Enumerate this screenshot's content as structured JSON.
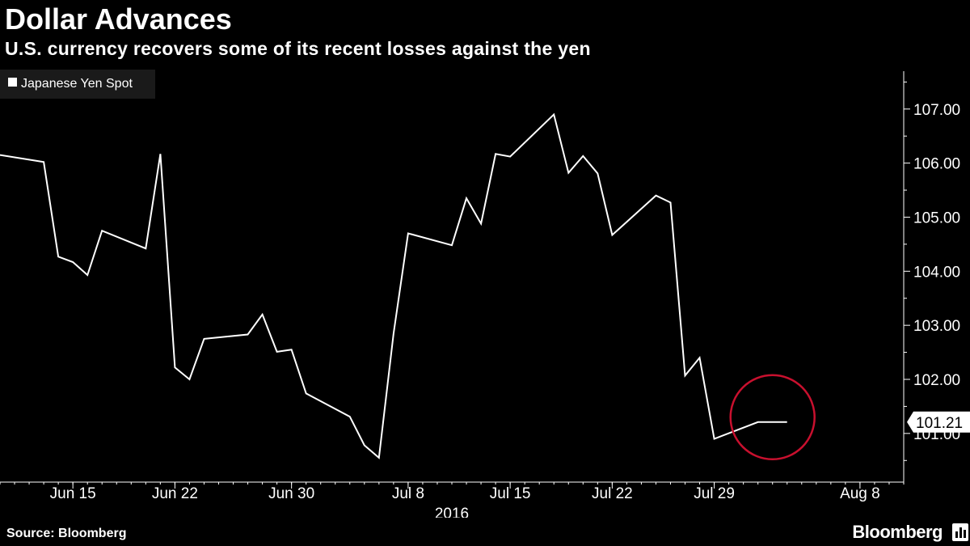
{
  "header": {
    "title": "Dollar Advances",
    "subtitle": "U.S. currency recovers some of its recent losses against the yen"
  },
  "footer": {
    "source": "Source: Bloomberg",
    "brand": "Bloomberg"
  },
  "colors": {
    "background": "#000000",
    "line": "#ffffff",
    "highlight_circle": "#c8102e",
    "legend_box": "#1a1a1a"
  },
  "chart_data": {
    "type": "line",
    "title": "Dollar Advances",
    "subtitle": "U.S. currency recovers some of its recent losses against the yen",
    "xlabel": "2016",
    "ylabel": "",
    "legend": {
      "position": "top-left",
      "entries": [
        "Japanese Yen Spot"
      ]
    },
    "grid": false,
    "ylim": [
      100.1,
      107.7
    ],
    "xlim": [
      "2016-06-10",
      "2016-08-11"
    ],
    "y_ticks": [
      "107.00",
      "106.00",
      "105.00",
      "104.00",
      "103.00",
      "102.00",
      "101.00"
    ],
    "x_ticks": [
      {
        "date": "2016-06-15",
        "label": "Jun 15"
      },
      {
        "date": "2016-06-22",
        "label": "Jun 22"
      },
      {
        "date": "2016-06-30",
        "label": "Jun 30"
      },
      {
        "date": "2016-07-08",
        "label": "Jul 8"
      },
      {
        "date": "2016-07-15",
        "label": "Jul 15"
      },
      {
        "date": "2016-07-22",
        "label": "Jul 22"
      },
      {
        "date": "2016-07-29",
        "label": "Jul 29"
      },
      {
        "date": "2016-08-08",
        "label": "Aug 8"
      }
    ],
    "series": [
      {
        "name": "Japanese Yen Spot",
        "last_value_label": "101.21",
        "x": [
          "2016-06-10",
          "2016-06-13",
          "2016-06-14",
          "2016-06-15",
          "2016-06-16",
          "2016-06-17",
          "2016-06-20",
          "2016-06-21",
          "2016-06-22",
          "2016-06-23",
          "2016-06-24",
          "2016-06-27",
          "2016-06-28",
          "2016-06-29",
          "2016-06-30",
          "2016-07-01",
          "2016-07-04",
          "2016-07-05",
          "2016-07-06",
          "2016-07-07",
          "2016-07-08",
          "2016-07-11",
          "2016-07-12",
          "2016-07-13",
          "2016-07-14",
          "2016-07-15",
          "2016-07-18",
          "2016-07-19",
          "2016-07-20",
          "2016-07-21",
          "2016-07-22",
          "2016-07-25",
          "2016-07-26",
          "2016-07-27",
          "2016-07-28",
          "2016-07-29",
          "2016-08-01",
          "2016-08-02",
          "2016-08-03"
        ],
        "values": [
          106.15,
          106.02,
          104.27,
          104.17,
          103.93,
          104.75,
          104.42,
          106.17,
          102.22,
          102.0,
          102.75,
          102.83,
          103.2,
          102.51,
          102.55,
          101.74,
          101.31,
          100.78,
          100.55,
          102.85,
          104.7,
          104.48,
          105.35,
          104.88,
          106.17,
          106.12,
          106.9,
          105.82,
          106.13,
          105.81,
          104.67,
          105.4,
          105.27,
          102.07,
          102.4,
          100.9,
          101.21,
          101.21,
          101.21
        ]
      }
    ],
    "highlight": {
      "shape": "circle",
      "center": {
        "date": "2016-08-02",
        "value": 101.3
      }
    }
  }
}
